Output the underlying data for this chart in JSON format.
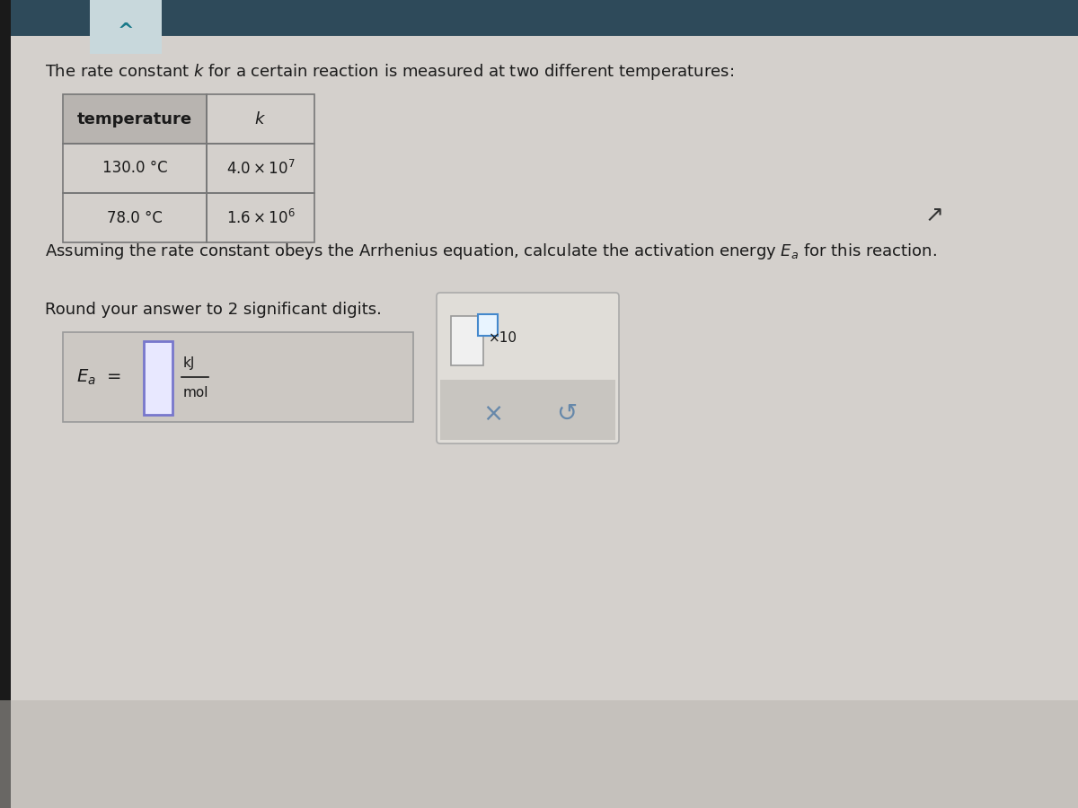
{
  "bg_color": "#d4d0cc",
  "bg_color_main": "#ccc9c4",
  "top_bar_color": "#2e4a5a",
  "caret_box_color": "#c8d8dc",
  "caret_color": "#1a7a8a",
  "text_color": "#1a1a1a",
  "title_text": "The rate constant $k$ for a certain reaction is measured at two different temperatures:",
  "header_bg": "#b8b4b0",
  "table_border_color": "#777777",
  "arrhenius_text": "Assuming the rate constant obeys the Arrhenius equation, calculate the activation energy $E_a$ for this reaction.",
  "round_text": "Round your answer to 2 significant digits.",
  "left_box_bg": "#ccc8c3",
  "left_box_border": "#999999",
  "input_box_bg": "#e8e8ff",
  "input_box_border": "#7777cc",
  "right_panel_bg_top": "#e0ddd8",
  "right_panel_bg_bot": "#c8c5c0",
  "right_panel_border": "#aaaaaa",
  "small_box_bg": "#f0f0f0",
  "small_box_border": "#999999",
  "sup_box_bg": "#e8f4ff",
  "sup_box_border": "#4488cc",
  "x_color": "#6688aa",
  "s_color": "#6688aa",
  "cursor_color": "#333333",
  "font_size_title": 13,
  "font_size_table_header": 13,
  "font_size_table_data": 12,
  "font_size_answer": 13,
  "font_size_unit": 11
}
